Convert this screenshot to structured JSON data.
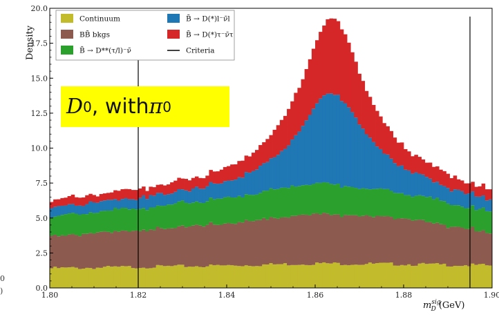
{
  "chart_data": {
    "type": "bar",
    "style": "stacked histogram",
    "ylabel": "Density",
    "xlabel_main": "m",
    "xlabel_sup": "sig",
    "xlabel_sub": "D",
    "xlabel_unit": "(GeV)",
    "xlim": [
      1.8,
      1.9
    ],
    "ylim": [
      0,
      20.0
    ],
    "x_ticks": [
      "1.80",
      "1.82",
      "1.84",
      "1.86",
      "1.88",
      "1.90"
    ],
    "y_ticks": [
      "0.0",
      "2.5",
      "5.0",
      "7.5",
      "10.0",
      "12.5",
      "15.0",
      "17.5",
      "20.0"
    ],
    "criteria_lines": [
      1.82,
      1.895
    ],
    "n_bins": 125,
    "colors": {
      "continuum": "#c2bb2b",
      "bb_bkgs": "#8c5a4e",
      "dstarstar": "#2ca02c",
      "norm": "#1f77b4",
      "tau": "#d62728",
      "criteria": "#000000"
    },
    "series": [
      {
        "key": "continuum",
        "name": "Continuum",
        "x": [
          1.8,
          1.82,
          1.84,
          1.86,
          1.88,
          1.9
        ],
        "values": [
          1.4,
          1.5,
          1.6,
          1.75,
          1.7,
          1.6
        ]
      },
      {
        "key": "bb_bkgs",
        "name": "BB̄ bkgs",
        "x": [
          1.8,
          1.82,
          1.84,
          1.86,
          1.88,
          1.9
        ],
        "values": [
          2.3,
          2.6,
          3.0,
          3.6,
          3.3,
          2.3
        ]
      },
      {
        "key": "dstarstar",
        "name": "B̄ → D**(τ/l)⁻ν̄",
        "x": [
          1.8,
          1.82,
          1.84,
          1.86,
          1.88,
          1.9
        ],
        "values": [
          1.4,
          1.6,
          1.8,
          2.2,
          1.8,
          1.5
        ]
      },
      {
        "key": "norm",
        "name": "B̄ → D(*)l⁻ν̄l",
        "x": [
          1.8,
          1.82,
          1.84,
          1.86,
          1.88,
          1.9
        ],
        "values": [
          0.5,
          0.5,
          1.0,
          6.0,
          0.5,
          0.5
        ]
      },
      {
        "key": "tau",
        "name": "B̄ → D(*)τ⁻ν̄τ",
        "x": [
          1.8,
          1.82,
          1.84,
          1.86,
          1.88,
          1.9
        ],
        "values": [
          0.5,
          0.5,
          1.0,
          5.0,
          0.5,
          0.5
        ]
      }
    ],
    "legend": [
      {
        "label": "Continuum",
        "color_key": "continuum",
        "kind": "patch"
      },
      {
        "label": "BB̄ bkgs",
        "color_key": "bb_bkgs",
        "kind": "patch"
      },
      {
        "label": "B̄ → D**(τ/l)⁻ν̄",
        "color_key": "dstarstar",
        "kind": "patch"
      },
      {
        "label": "B̄ → D(*)l⁻ν̄l",
        "color_key": "norm",
        "kind": "patch"
      },
      {
        "label": "B̄ → D(*)τ⁻ν̄τ",
        "color_key": "tau",
        "kind": "patch"
      },
      {
        "label": "Criteria",
        "color_key": "criteria",
        "kind": "line"
      }
    ]
  },
  "overlay": {
    "text_main": "D",
    "text_sup": "0",
    "text_mid": ", with ",
    "text_pi": "π",
    "text_pi_sup": "0"
  },
  "clipped": {
    "line1": "0",
    "line2": ")"
  }
}
